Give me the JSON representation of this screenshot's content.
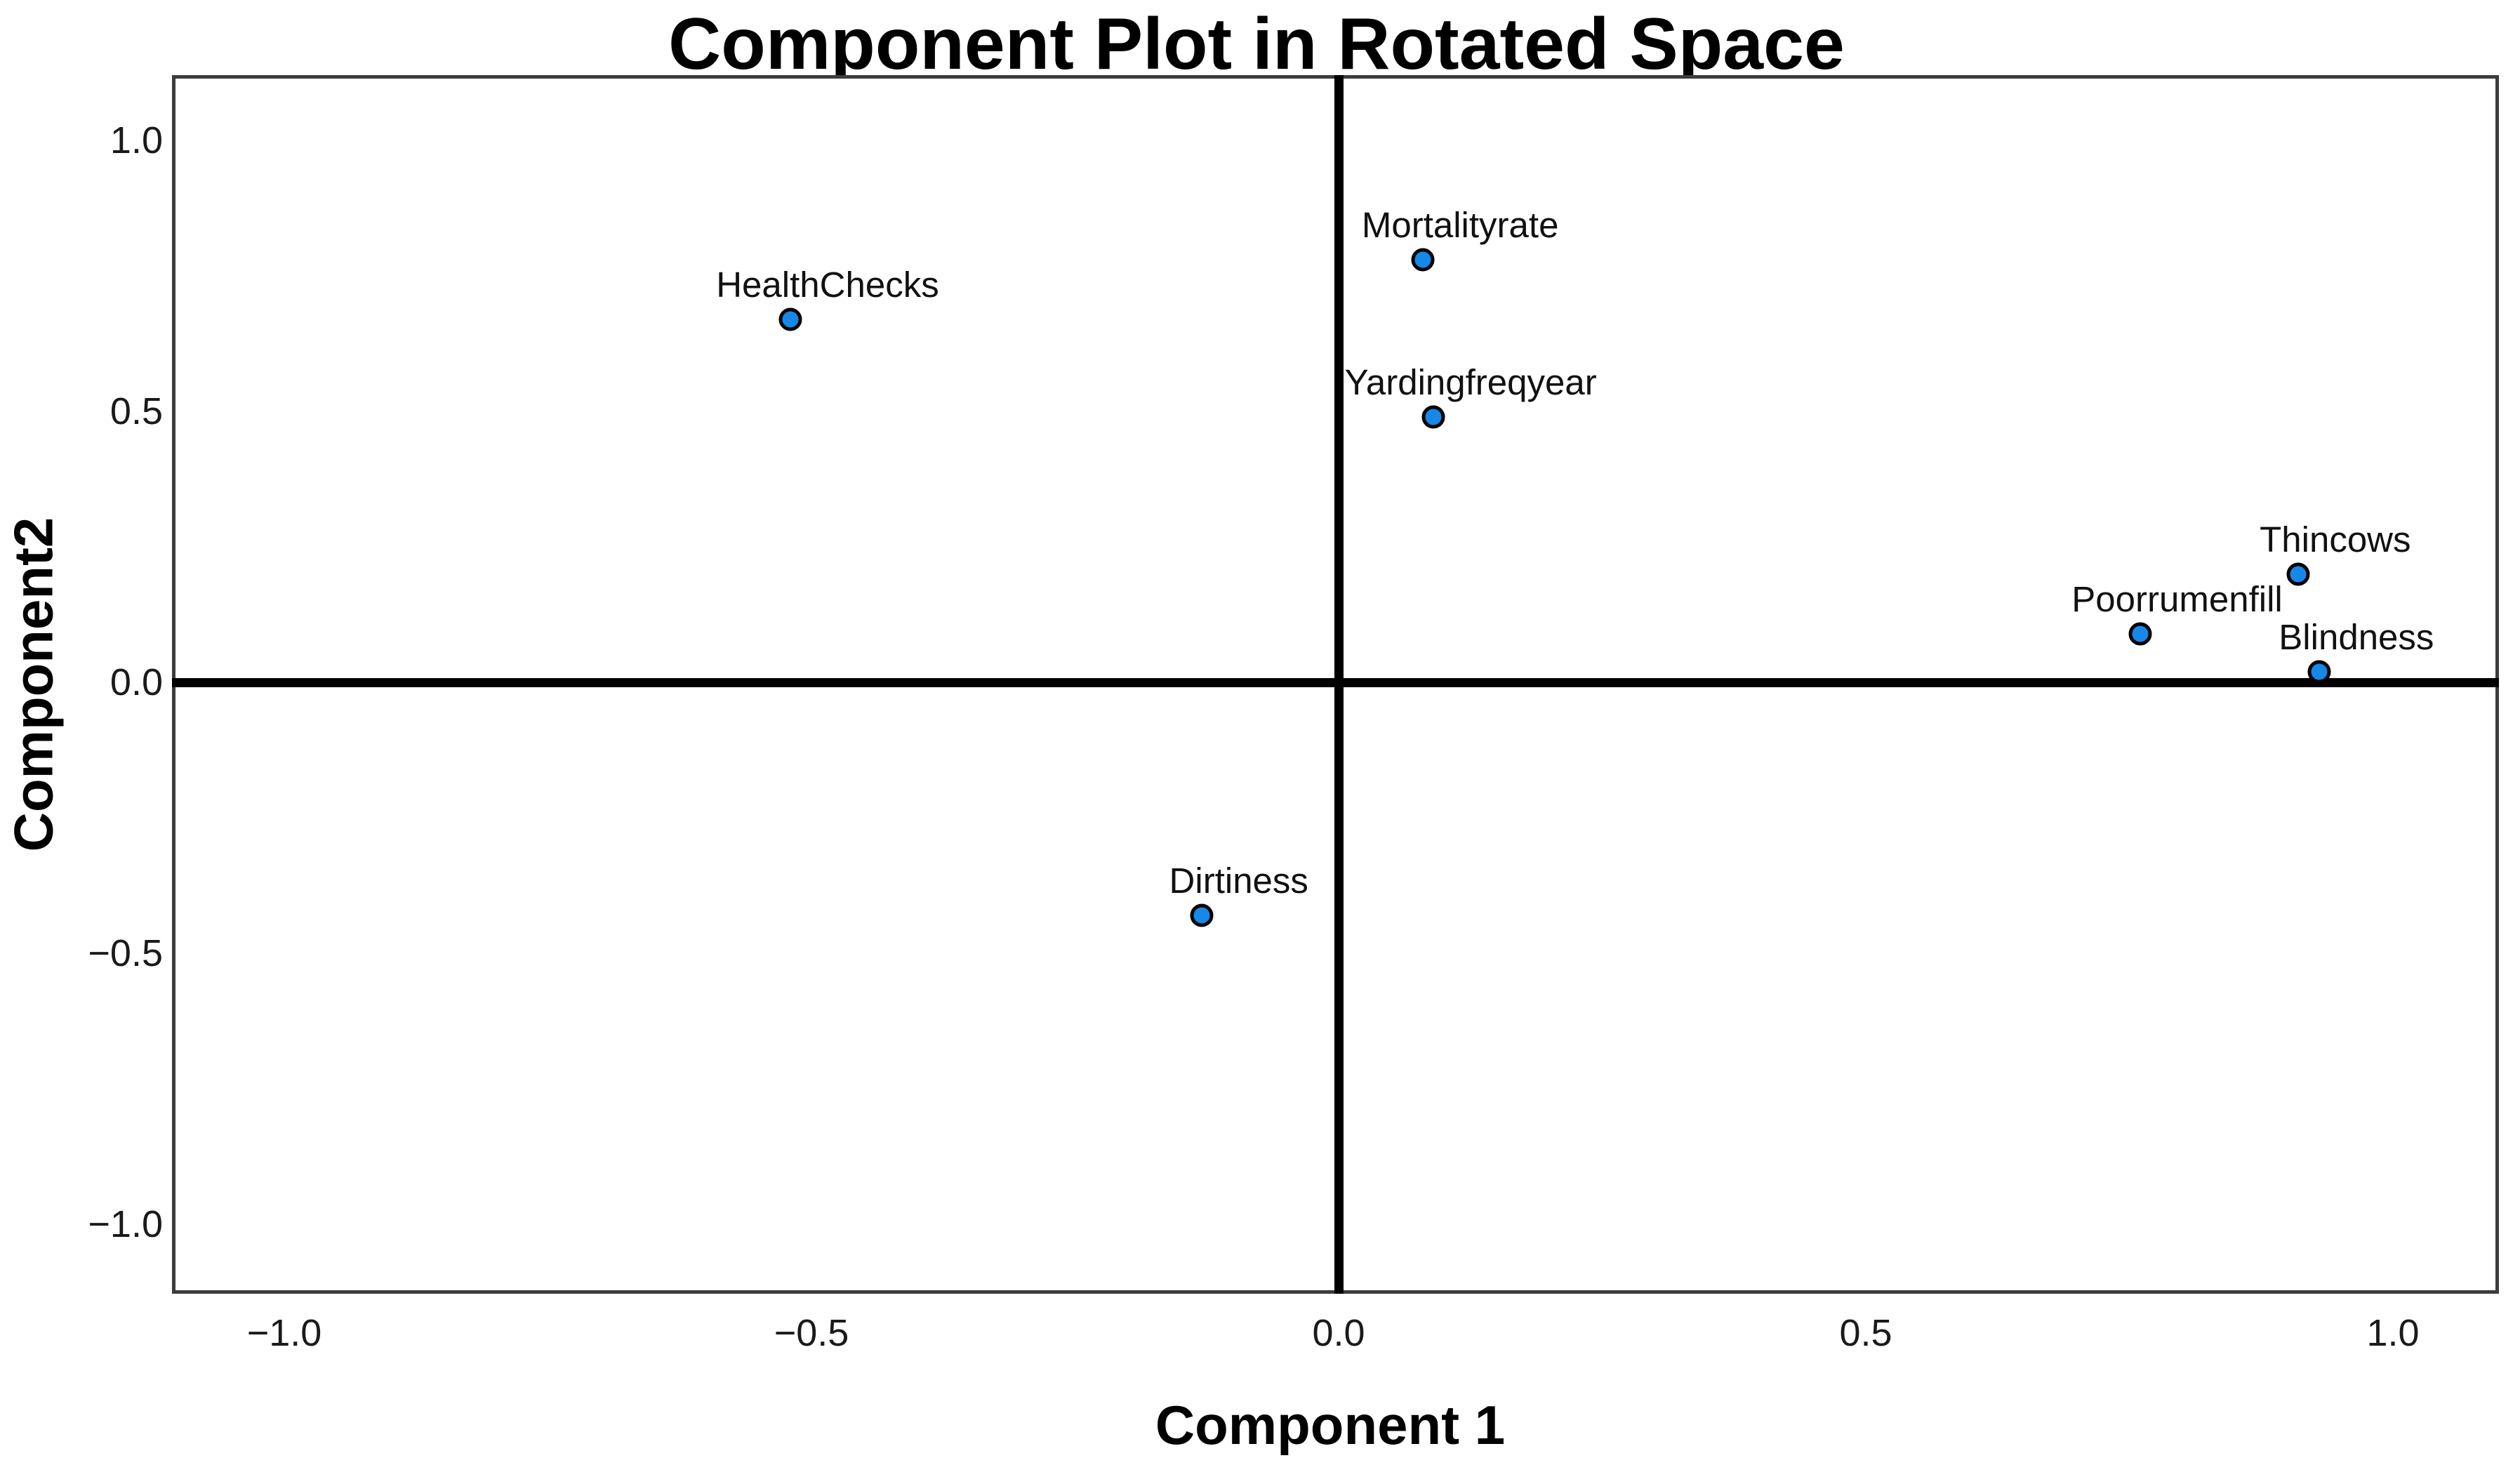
{
  "chart_data": {
    "type": "scatter",
    "title": "Component Plot in Rotated Space",
    "xlabel": "Component 1",
    "ylabel": "Component2",
    "xlim": [
      -1.1,
      1.1
    ],
    "ylim": [
      -1.13,
      1.13
    ],
    "grid": false,
    "legend": "none",
    "x_ticks": [
      {
        "label": "-1.0",
        "value": -1.0
      },
      {
        "label": "-0.5",
        "value": -0.5
      },
      {
        "label": "0.0",
        "value": 0.0
      },
      {
        "label": "0.5",
        "value": 0.5
      },
      {
        "label": "1.0",
        "value": 1.0
      }
    ],
    "y_ticks": [
      {
        "label": "1.0",
        "value": 1.0
      },
      {
        "label": "0.5",
        "value": 0.5
      },
      {
        "label": "0.0",
        "value": 0.0
      },
      {
        "label": "-0.5",
        "value": -0.5
      },
      {
        "label": "-1.0",
        "value": -1.0
      }
    ],
    "reference_lines": {
      "x": 0.0,
      "y": 0.0
    },
    "points": [
      {
        "label": "HealthChecks",
        "x": -0.52,
        "y": 0.67
      },
      {
        "label": "Mortalityrate",
        "x": 0.08,
        "y": 0.78
      },
      {
        "label": "Yardingfreqyear",
        "x": 0.09,
        "y": 0.49
      },
      {
        "label": "Thincows",
        "x": 0.91,
        "y": 0.2
      },
      {
        "label": "Poorrumenfill",
        "x": 0.76,
        "y": 0.09
      },
      {
        "label": "Blindness",
        "x": 0.93,
        "y": 0.02
      },
      {
        "label": "Dirtiness",
        "x": -0.13,
        "y": -0.43
      }
    ],
    "colors": {
      "marker_fill": "#1688E8",
      "marker_edge": "#000000",
      "reference_line": "#000000",
      "frame": "#3D3D3D",
      "text": "#000000",
      "background": "#FFFFFF"
    }
  }
}
